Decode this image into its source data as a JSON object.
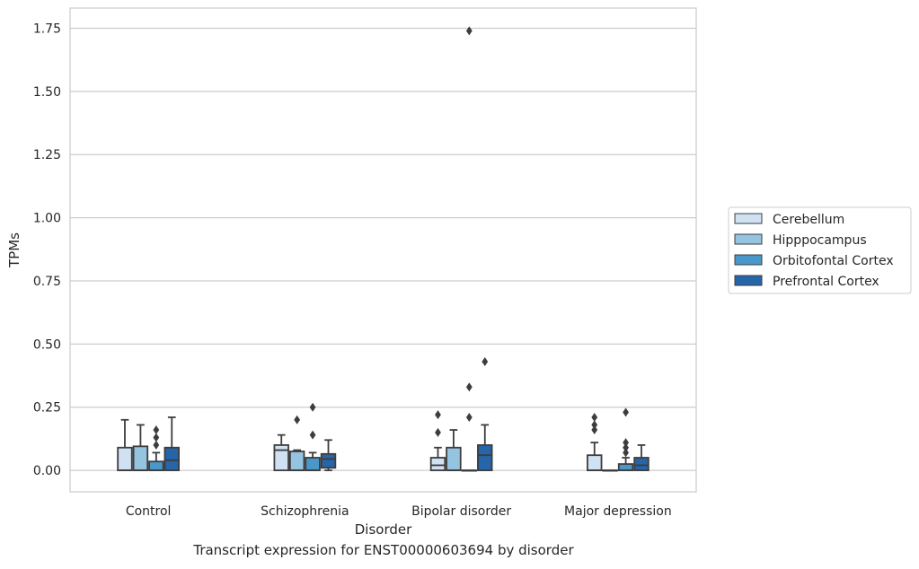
{
  "caption": "Transcript expression for ENST00000603694 by disorder",
  "chart_data": {
    "type": "box",
    "title": "",
    "xlabel": "Disorder",
    "ylabel": "TPMs",
    "ylim": [
      -0.085,
      1.83
    ],
    "yticks": [
      0.0,
      0.25,
      0.5,
      0.75,
      1.0,
      1.25,
      1.5,
      1.75
    ],
    "ytick_labels": [
      "0.00",
      "0.25",
      "0.50",
      "0.75",
      "1.00",
      "1.25",
      "1.50",
      "1.75"
    ],
    "grid": "horizontal",
    "legend_position": "right",
    "categories": [
      "Control",
      "Schizophrenia",
      "Bipolar disorder",
      "Major depression"
    ],
    "series": [
      {
        "name": "Cerebellum",
        "color": "#d0e1f2",
        "boxes": [
          {
            "q1": 0.0,
            "median": 0.0,
            "q3": 0.09,
            "whislo": 0.0,
            "whishi": 0.2,
            "fliers": []
          },
          {
            "q1": 0.0,
            "median": 0.08,
            "q3": 0.1,
            "whislo": 0.0,
            "whishi": 0.14,
            "fliers": []
          },
          {
            "q1": 0.0,
            "median": 0.02,
            "q3": 0.05,
            "whislo": 0.0,
            "whishi": 0.09,
            "fliers": [
              0.15,
              0.22
            ]
          },
          {
            "q1": 0.0,
            "median": 0.0,
            "q3": 0.06,
            "whislo": 0.0,
            "whishi": 0.11,
            "fliers": [
              0.16,
              0.18,
              0.21
            ]
          }
        ]
      },
      {
        "name": "Hipppocampus",
        "color": "#94c4df",
        "boxes": [
          {
            "q1": 0.0,
            "median": 0.0,
            "q3": 0.095,
            "whislo": 0.0,
            "whishi": 0.18,
            "fliers": []
          },
          {
            "q1": 0.0,
            "median": 0.0,
            "q3": 0.075,
            "whislo": 0.0,
            "whishi": 0.08,
            "fliers": [
              0.2
            ]
          },
          {
            "q1": 0.0,
            "median": 0.0,
            "q3": 0.09,
            "whislo": 0.0,
            "whishi": 0.16,
            "fliers": []
          },
          {
            "q1": 0.0,
            "median": 0.0,
            "q3": 0.0,
            "whislo": 0.0,
            "whishi": 0.0,
            "fliers": []
          }
        ]
      },
      {
        "name": "Orbitofontal Cortex",
        "color": "#4a98c9",
        "boxes": [
          {
            "q1": 0.0,
            "median": 0.0,
            "q3": 0.035,
            "whislo": 0.0,
            "whishi": 0.07,
            "fliers": [
              0.1,
              0.13,
              0.16
            ]
          },
          {
            "q1": 0.0,
            "median": 0.0,
            "q3": 0.05,
            "whislo": 0.0,
            "whishi": 0.07,
            "fliers": [
              0.14,
              0.25
            ]
          },
          {
            "q1": 0.0,
            "median": 0.0,
            "q3": 0.0,
            "whislo": 0.0,
            "whishi": 0.0,
            "fliers": [
              0.21,
              0.33,
              1.74
            ]
          },
          {
            "q1": 0.0,
            "median": 0.0,
            "q3": 0.025,
            "whislo": 0.0,
            "whishi": 0.05,
            "fliers": [
              0.07,
              0.09,
              0.11,
              0.23
            ]
          }
        ]
      },
      {
        "name": "Prefrontal Cortex",
        "color": "#2565a8",
        "boxes": [
          {
            "q1": 0.0,
            "median": 0.04,
            "q3": 0.09,
            "whislo": 0.0,
            "whishi": 0.21,
            "fliers": []
          },
          {
            "q1": 0.01,
            "median": 0.045,
            "q3": 0.065,
            "whislo": 0.0,
            "whishi": 0.12,
            "fliers": []
          },
          {
            "q1": 0.0,
            "median": 0.06,
            "q3": 0.1,
            "whislo": 0.0,
            "whishi": 0.18,
            "fliers": [
              0.43
            ]
          },
          {
            "q1": 0.0,
            "median": 0.02,
            "q3": 0.05,
            "whislo": 0.0,
            "whishi": 0.1,
            "fliers": []
          }
        ]
      }
    ]
  }
}
